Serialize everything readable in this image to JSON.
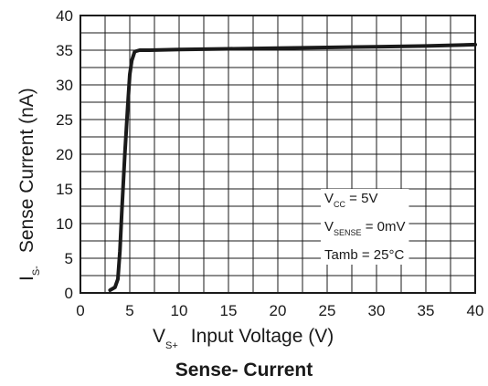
{
  "chart_data": {
    "type": "line",
    "title": "",
    "caption": "Sense- Current",
    "xlabel": {
      "main": "V",
      "sub": "S+",
      "rest": "Input Voltage (V)"
    },
    "ylabel": {
      "main": "I",
      "sub": "S-",
      "rest": "Sense Current (nA)"
    },
    "xlim": [
      0,
      40
    ],
    "ylim": [
      0,
      40
    ],
    "x_ticks": [
      0,
      5,
      10,
      15,
      20,
      25,
      30,
      35,
      40
    ],
    "y_ticks": [
      0,
      5,
      10,
      15,
      20,
      25,
      30,
      35,
      40
    ],
    "grid": true,
    "grid_x_step": 2.5,
    "grid_y_step": 2.5,
    "series": [
      {
        "x": [
          3.0,
          3.5,
          3.8,
          4.0,
          4.2,
          4.5,
          4.8,
          5.0,
          5.2,
          5.5,
          6.0,
          7.0,
          10.0,
          15.0,
          20.0,
          25.0,
          30.0,
          35.0,
          40.0
        ],
        "y": [
          0.4,
          0.8,
          2.0,
          6.0,
          12.0,
          20.0,
          27.0,
          31.5,
          33.5,
          34.8,
          35.0,
          35.0,
          35.1,
          35.2,
          35.3,
          35.4,
          35.5,
          35.6,
          35.8
        ]
      }
    ],
    "legend_box": [
      {
        "main": "V",
        "sub": "CC",
        "rest": " = 5V"
      },
      {
        "main": "V",
        "sub": "SENSE",
        "rest": " = 0mV"
      },
      {
        "main": "Tamb = 25°C",
        "sub": "",
        "rest": ""
      }
    ],
    "legend_placement": "bottom-right"
  }
}
